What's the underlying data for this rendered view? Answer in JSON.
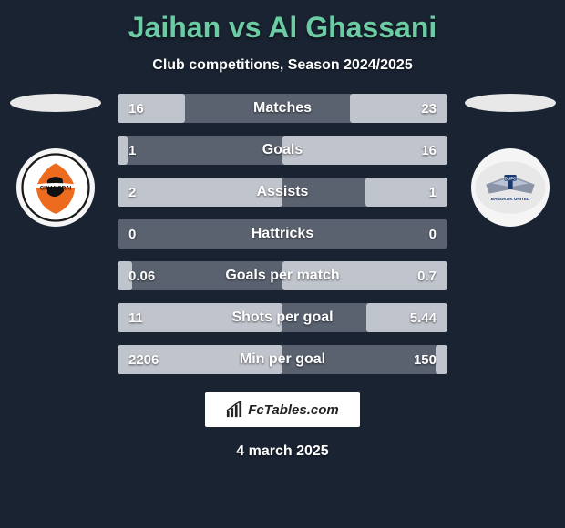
{
  "title_color": "#6bcca4",
  "title": "Jaihan vs Al Ghassani",
  "subtitle": "Club competitions, Season 2024/2025",
  "date": "4 march 2025",
  "brand": "FcTables.com",
  "left_club_label": "CHIANGRAI",
  "right_club_label": "BANGKOK UNITED",
  "bar_bg": "#5a6270",
  "bar_fill": "#c0c4cc",
  "rows": [
    {
      "label": "Matches",
      "left": "16",
      "right": "23",
      "lw": 41,
      "rw": 59
    },
    {
      "label": "Goals",
      "left": "1",
      "right": "16",
      "lw": 6,
      "rw": 100
    },
    {
      "label": "Assists",
      "left": "2",
      "right": "1",
      "lw": 100,
      "rw": 50
    },
    {
      "label": "Hattricks",
      "left": "0",
      "right": "0",
      "lw": 0,
      "rw": 0
    },
    {
      "label": "Goals per match",
      "left": "0.06",
      "right": "0.7",
      "lw": 9,
      "rw": 100
    },
    {
      "label": "Shots per goal",
      "left": "11",
      "right": "5.44",
      "lw": 100,
      "rw": 49
    },
    {
      "label": "Min per goal",
      "left": "2206",
      "right": "150",
      "lw": 100,
      "rw": 7
    }
  ]
}
